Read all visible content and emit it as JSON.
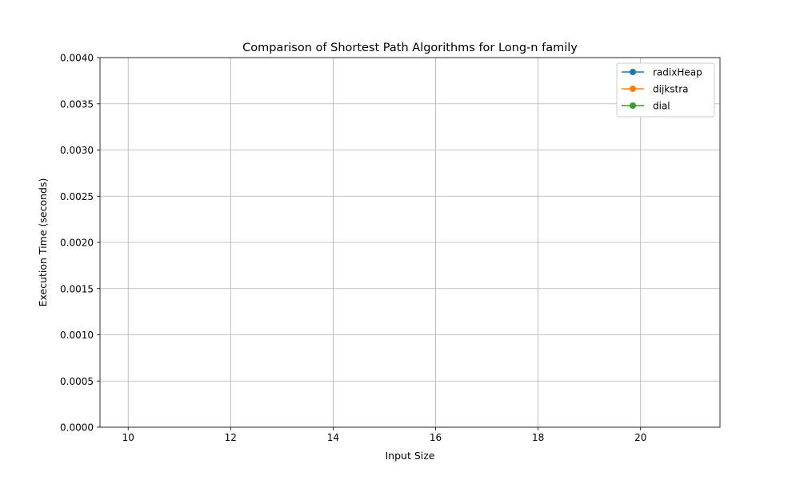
{
  "chart_data": {
    "type": "line",
    "title": "Comparison of Shortest Path Algorithms for Long-n family",
    "xlabel": "Input Size",
    "ylabel": "Execution Time (seconds)",
    "xlim": [
      9.45,
      21.55
    ],
    "ylim": [
      0.0,
      0.004
    ],
    "xticks": [
      "10",
      "12",
      "14",
      "16",
      "18",
      "20"
    ],
    "xtick_values": [
      10,
      12,
      14,
      16,
      18,
      20
    ],
    "yticks": [
      "0.0000",
      "0.0005",
      "0.0010",
      "0.0015",
      "0.0020",
      "0.0025",
      "0.0030",
      "0.0035",
      "0.0040"
    ],
    "ytick_values": [
      0.0,
      0.0005,
      0.001,
      0.0015,
      0.002,
      0.0025,
      0.003,
      0.0035,
      0.004
    ],
    "grid": true,
    "legend_position": "top-right",
    "series": [
      {
        "name": "radixHeap",
        "color": "#1f77b4",
        "marker": "circle",
        "x": [],
        "values": []
      },
      {
        "name": "dijkstra",
        "color": "#ff7f0e",
        "marker": "circle",
        "x": [],
        "values": []
      },
      {
        "name": "dial",
        "color": "#2ca02c",
        "marker": "circle",
        "x": [],
        "values": []
      }
    ]
  }
}
